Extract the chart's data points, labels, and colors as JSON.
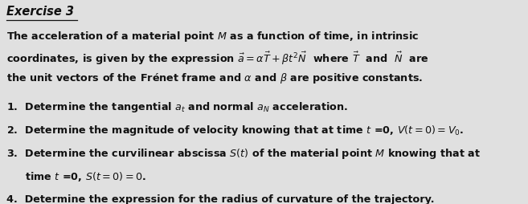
{
  "title": "Exercise 3",
  "background_color": "#e0e0e0",
  "text_color": "#111111",
  "title_fontsize": 10.5,
  "body_fontsize": 9.2,
  "fig_width": 6.57,
  "fig_height": 2.55,
  "dpi": 100,
  "intro_lines": [
    "The acceleration of a material point $M$ as a function of time, in intrinsic",
    "coordinates, is given by the expression $\\vec{a} = \\alpha\\vec{T} + \\beta t^2\\vec{N}$  where $\\vec{T}$  and  $\\vec{N}$  are",
    "the unit vectors of the Frénet frame and $\\alpha$ and $\\beta$ are positive constants."
  ],
  "items": [
    "1.  Determine the tangential $a_t$ and normal $a_N$ acceleration.",
    "2.  Determine the magnitude of velocity knowing that at time $t$ =0, $V(t = 0)= V_0$.",
    "3.  Determine the curvilinear abscissa $S(t)$ of the material point $M$ knowing that at",
    "3b.        time $t$ =0, $S(t = 0) = 0$.",
    "4.  Determine the expression for the radius of curvature of the trajectory."
  ]
}
